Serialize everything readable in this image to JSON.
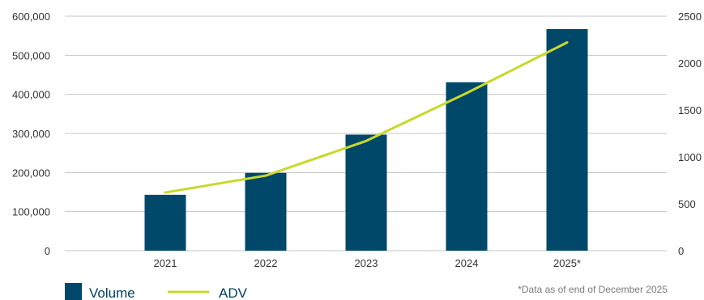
{
  "chart_data": {
    "type": "bar",
    "categories": [
      "2021",
      "2022",
      "2023",
      "2024",
      "2025*"
    ],
    "series": [
      {
        "name": "Volume",
        "type": "bar",
        "axis": "left",
        "color": "#00486a",
        "values": [
          143000,
          199000,
          297000,
          431000,
          567000
        ]
      },
      {
        "name": "ADV",
        "type": "line",
        "axis": "right",
        "color": "#c8d92c",
        "values": [
          620,
          800,
          1170,
          1680,
          2220
        ]
      }
    ],
    "left_axis": {
      "ylim": [
        0,
        600000
      ],
      "ticks": [
        0,
        100000,
        200000,
        300000,
        400000,
        500000,
        600000
      ],
      "tick_labels": [
        "0",
        "100,000",
        "200,000",
        "300,000",
        "400,000",
        "500,000",
        "600,000"
      ]
    },
    "right_axis": {
      "ylim": [
        0,
        2500
      ],
      "ticks": [
        0,
        500,
        1000,
        1500,
        2000,
        2500
      ],
      "tick_labels": [
        "0",
        "500",
        "1000",
        "1500",
        "2000",
        "2500"
      ]
    },
    "grid": true,
    "legend": {
      "placement": "bottom-left",
      "items": [
        "Volume",
        "ADV"
      ]
    },
    "footnote": "*Data as of end of December 2025"
  }
}
